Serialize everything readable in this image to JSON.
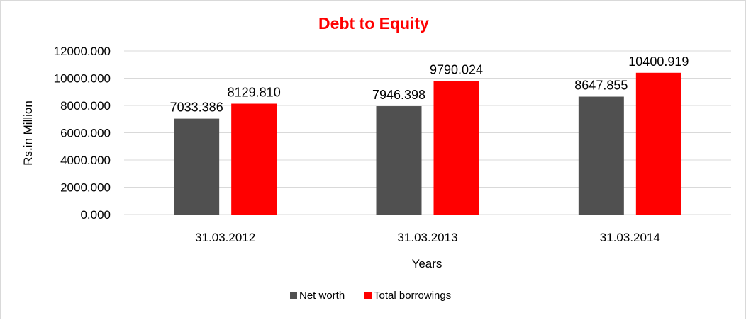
{
  "chart_data": {
    "type": "bar",
    "title": "Debt to Equity",
    "xlabel": "Years",
    "ylabel": "Rs.in Million",
    "categories": [
      "31.03.2012",
      "31.03.2013",
      "31.03.2014"
    ],
    "series": [
      {
        "name": "Net worth",
        "color": "#505050",
        "values": [
          7033.386,
          7946.398,
          8647.855
        ],
        "labels": [
          "7033.386",
          "7946.398",
          "8647.855"
        ]
      },
      {
        "name": "Total borrowings",
        "color": "#ff0000",
        "values": [
          8129.81,
          9790.024,
          10400.919
        ],
        "labels": [
          "8129.810",
          "9790.024",
          "10400.919"
        ]
      }
    ],
    "ylim": [
      0,
      12000
    ],
    "yticks": [
      0,
      2000,
      4000,
      6000,
      8000,
      10000,
      12000
    ],
    "ytick_labels": [
      "0.000",
      "2000.000",
      "4000.000",
      "6000.000",
      "8000.000",
      "10000.000",
      "12000.000"
    ],
    "grid": true,
    "legend_position": "bottom",
    "colors": {
      "title": "#ff0000",
      "grid": "#d9d9d9",
      "border": "#d9d9d9"
    }
  }
}
